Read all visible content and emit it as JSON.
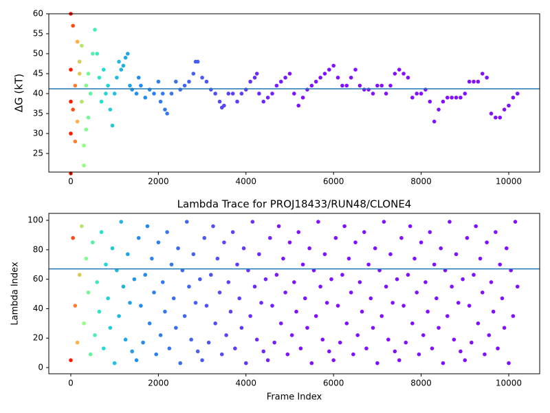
{
  "chart_data": [
    {
      "type": "scatter",
      "y_label": "ΔG (kT)",
      "x": [
        0,
        0,
        0,
        0,
        0,
        50,
        50,
        100,
        100,
        150,
        150,
        200,
        200,
        250,
        250,
        300,
        300,
        350,
        350,
        400,
        400,
        450,
        500,
        550,
        600,
        650,
        700,
        750,
        800,
        850,
        900,
        950,
        1000,
        1050,
        1100,
        1150,
        1200,
        1250,
        1300,
        1350,
        1400,
        1500,
        1550,
        1600,
        1700,
        1800,
        1900,
        2000,
        2050,
        2100,
        2150,
        2200,
        2300,
        2400,
        2500,
        2600,
        2700,
        2800,
        2850,
        2900,
        3000,
        3100,
        3200,
        3300,
        3400,
        3450,
        3500,
        3600,
        3700,
        3800,
        3900,
        4000,
        4100,
        4200,
        4250,
        4300,
        4400,
        4500,
        4600,
        4700,
        4800,
        4900,
        5000,
        5100,
        5200,
        5300,
        5400,
        5500,
        5600,
        5700,
        5800,
        5900,
        6000,
        6100,
        6200,
        6300,
        6400,
        6500,
        6600,
        6700,
        6800,
        6900,
        7000,
        7100,
        7200,
        7300,
        7400,
        7500,
        7600,
        7700,
        7800,
        7900,
        8000,
        8100,
        8200,
        8300,
        8400,
        8500,
        8600,
        8700,
        8800,
        8900,
        9000,
        9100,
        9200,
        9300,
        9400,
        9500,
        9600,
        9700,
        9800,
        9900,
        10000,
        10100,
        10200
      ],
      "values": [
        60,
        46,
        38,
        30,
        20,
        57,
        36,
        42,
        28,
        53,
        33,
        48,
        45,
        52,
        38,
        27,
        22,
        42,
        31,
        45,
        34,
        40,
        50,
        56,
        50,
        44,
        38,
        46,
        40,
        42,
        36,
        32,
        40,
        44,
        48,
        46,
        47,
        49,
        50,
        42,
        41,
        40,
        44,
        42,
        39,
        41,
        40,
        43,
        38,
        40,
        36,
        35,
        40,
        43,
        41,
        42,
        43,
        45,
        48,
        48,
        44,
        43,
        41,
        40,
        38,
        36.5,
        37,
        40,
        40,
        38,
        40,
        41,
        43,
        44,
        45,
        40,
        38,
        39,
        40,
        42,
        43,
        44,
        45,
        40,
        37,
        39,
        41,
        42,
        43,
        44,
        45,
        46,
        47,
        44,
        42,
        42,
        44,
        46,
        42,
        41,
        41,
        40,
        42,
        42,
        40,
        42,
        45,
        46,
        45,
        44,
        39,
        40,
        40,
        41,
        38,
        33,
        36,
        38,
        39,
        39,
        39,
        39,
        40,
        43,
        43,
        43,
        45,
        44,
        35,
        34,
        34,
        36,
        37,
        39,
        40
      ],
      "xlim": [
        -502,
        10707
      ],
      "ylim": [
        20.34,
        60
      ],
      "xticks": [
        0,
        2000,
        4000,
        6000,
        8000,
        10000
      ],
      "yticks": [
        25,
        30,
        35,
        40,
        45,
        50,
        55,
        60
      ],
      "hline": 41.2,
      "hline_color": "#1f77b4",
      "color_stops": [
        [
          0,
          "#ff1a00"
        ],
        [
          150,
          "#ffb040"
        ],
        [
          300,
          "#90ff80"
        ],
        [
          700,
          "#20e0d0"
        ],
        [
          1500,
          "#2090f0"
        ],
        [
          3000,
          "#4a58f4"
        ],
        [
          5000,
          "#8010ff"
        ]
      ]
    },
    {
      "type": "scatter",
      "title": "Lambda Trace for PROJ18433/RUN48/CLONE4",
      "x_label": "Frame Index",
      "y_label": "Lambda Index",
      "x": [
        0,
        50,
        100,
        150,
        200,
        250,
        300,
        350,
        400,
        450,
        500,
        550,
        600,
        650,
        700,
        750,
        800,
        850,
        900,
        950,
        1000,
        1050,
        1100,
        1150,
        1200,
        1250,
        1300,
        1350,
        1400,
        1450,
        1500,
        1550,
        1600,
        1650,
        1700,
        1750,
        1800,
        1850,
        1900,
        1950,
        2000,
        2050,
        2100,
        2150,
        2200,
        2250,
        2300,
        2350,
        2400,
        2450,
        2500,
        2550,
        2600,
        2650,
        2700,
        2750,
        2800,
        2850,
        2900,
        2950,
        3000,
        3050,
        3100,
        3150,
        3200,
        3250,
        3300,
        3350,
        3400,
        3450,
        3500,
        3550,
        3600,
        3650,
        3700,
        3750,
        3800,
        3850,
        3900,
        3950,
        4000,
        4050,
        4100,
        4150,
        4200,
        4250,
        4300,
        4350,
        4400,
        4450,
        4500,
        4550,
        4600,
        4650,
        4700,
        4750,
        4800,
        4850,
        4900,
        4950,
        5000,
        5050,
        5100,
        5150,
        5200,
        5250,
        5300,
        5350,
        5400,
        5450,
        5500,
        5550,
        5600,
        5650,
        5700,
        5750,
        5800,
        5850,
        5900,
        5950,
        6000,
        6050,
        6100,
        6150,
        6200,
        6250,
        6300,
        6350,
        6400,
        6450,
        6500,
        6550,
        6600,
        6650,
        6700,
        6750,
        6800,
        6850,
        6900,
        6950,
        7000,
        7050,
        7100,
        7150,
        7200,
        7250,
        7300,
        7350,
        7400,
        7450,
        7500,
        7550,
        7600,
        7650,
        7700,
        7750,
        7800,
        7850,
        7900,
        7950,
        8000,
        8050,
        8100,
        8150,
        8200,
        8250,
        8300,
        8350,
        8400,
        8450,
        8500,
        8550,
        8600,
        8650,
        8700,
        8750,
        8800,
        8850,
        8900,
        8950,
        9000,
        9050,
        9100,
        9150,
        9200,
        9250,
        9300,
        9350,
        9400,
        9450,
        9500,
        9550,
        9600,
        9650,
        9700,
        9750,
        9800,
        9850,
        9900,
        9950,
        10000,
        10050,
        10100,
        10150,
        10200
      ],
      "values": [
        5,
        88,
        42,
        17,
        63,
        96,
        30,
        74,
        51,
        9,
        85,
        22,
        58,
        38,
        92,
        13,
        70,
        47,
        27,
        81,
        3,
        66,
        35,
        99,
        55,
        19,
        77,
        44,
        11,
        60,
        5,
        88,
        42,
        17,
        63,
        96,
        30,
        74,
        51,
        9,
        85,
        22,
        58,
        38,
        92,
        13,
        70,
        47,
        27,
        81,
        3,
        66,
        35,
        99,
        55,
        19,
        77,
        44,
        11,
        60,
        5,
        88,
        42,
        17,
        63,
        96,
        30,
        74,
        51,
        9,
        85,
        22,
        58,
        38,
        92,
        13,
        70,
        47,
        27,
        81,
        3,
        66,
        35,
        99,
        55,
        19,
        77,
        44,
        11,
        60,
        5,
        88,
        42,
        17,
        63,
        96,
        30,
        74,
        51,
        9,
        85,
        22,
        58,
        38,
        92,
        13,
        70,
        47,
        27,
        81,
        3,
        66,
        35,
        99,
        55,
        19,
        77,
        44,
        11,
        60,
        5,
        88,
        42,
        17,
        63,
        96,
        30,
        74,
        51,
        9,
        85,
        22,
        58,
        38,
        92,
        13,
        70,
        47,
        27,
        81,
        3,
        66,
        35,
        99,
        55,
        19,
        77,
        44,
        11,
        60,
        5,
        88,
        42,
        17,
        63,
        96,
        30,
        74,
        51,
        9,
        85,
        22,
        58,
        38,
        92,
        13,
        70,
        47,
        27,
        81,
        3,
        66,
        35,
        99,
        55,
        19,
        77,
        44,
        11,
        60,
        5,
        88,
        42,
        17,
        63,
        96,
        30,
        74,
        51,
        9,
        85,
        22,
        58,
        38,
        92,
        13,
        70,
        47,
        27,
        81,
        3,
        66,
        35,
        99,
        55
      ],
      "xlim": [
        -502,
        10707
      ],
      "ylim": [
        -4.2,
        104.7
      ],
      "xticks": [
        0,
        2000,
        4000,
        6000,
        8000,
        10000
      ],
      "yticks": [
        0,
        20,
        40,
        60,
        80,
        100
      ],
      "hline": 67,
      "hline_color": "#1f77b4",
      "color_stops": [
        [
          0,
          "#ff1a00"
        ],
        [
          150,
          "#ffb040"
        ],
        [
          300,
          "#90ff80"
        ],
        [
          700,
          "#20e0d0"
        ],
        [
          1500,
          "#2090f0"
        ],
        [
          3000,
          "#4a58f4"
        ],
        [
          5000,
          "#8010ff"
        ]
      ]
    }
  ]
}
